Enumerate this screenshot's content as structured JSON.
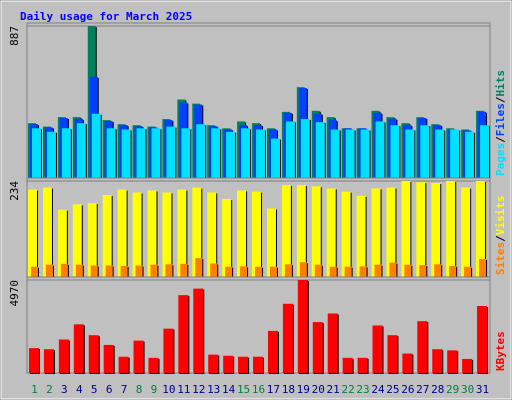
{
  "chart_data": {
    "type": "bar",
    "title": "Daily usage for March 2025",
    "legend_separator": "/",
    "categories": [
      "1",
      "2",
      "3",
      "4",
      "5",
      "6",
      "7",
      "8",
      "9",
      "10",
      "11",
      "12",
      "13",
      "14",
      "15",
      "16",
      "17",
      "18",
      "19",
      "20",
      "21",
      "22",
      "23",
      "24",
      "25",
      "26",
      "27",
      "28",
      "29",
      "30",
      "31"
    ],
    "category_colors": [
      "#008040",
      "#008040",
      "#00008b",
      "#00008b",
      "#00008b",
      "#00008b",
      "#00008b",
      "#008040",
      "#008040",
      "#00008b",
      "#00008b",
      "#00008b",
      "#00008b",
      "#00008b",
      "#008040",
      "#008040",
      "#00008b",
      "#00008b",
      "#00008b",
      "#00008b",
      "#00008b",
      "#008040",
      "#008040",
      "#00008b",
      "#00008b",
      "#00008b",
      "#00008b",
      "#00008b",
      "#008040",
      "#008040",
      "#00008b"
    ],
    "panels": [
      {
        "ylim": [
          0,
          887
        ],
        "yticks": [
          887
        ],
        "series": [
          {
            "name": "Hits",
            "color": "#00805c",
            "values": [
              320,
              300,
              355,
              355,
              887,
              338,
              314,
              308,
              300,
              344,
              458,
              434,
              308,
              290,
              330,
              320,
              290,
              386,
              530,
              392,
              355,
              290,
              290,
              392,
              355,
              320,
              355,
              314,
              290,
              283,
              392
            ]
          },
          {
            "name": "Files",
            "color": "#0040ff",
            "values": [
              314,
              295,
              350,
              345,
              590,
              332,
              308,
              302,
              295,
              338,
              440,
              428,
              302,
              283,
              308,
              308,
              283,
              380,
              525,
              375,
              338,
              290,
              290,
              380,
              345,
              308,
              350,
              308,
              283,
              277,
              386
            ]
          },
          {
            "name": "Pages",
            "color": "#00e0ff",
            "values": [
              290,
              270,
              290,
              320,
              375,
              290,
              283,
              290,
              290,
              300,
              290,
              314,
              290,
              270,
              290,
              283,
              230,
              330,
              344,
              326,
              283,
              283,
              283,
              330,
              308,
              283,
              308,
              283,
              283,
              270,
              308
            ]
          }
        ]
      },
      {
        "ylim": [
          0,
          234
        ],
        "yticks": [
          234
        ],
        "series": [
          {
            "name": "Visits",
            "color": "#ffff00",
            "values": [
              213,
              218,
              164,
              177,
              180,
              200,
              213,
              206,
              211,
              206,
              213,
              218,
              206,
              190,
              211,
              208,
              167,
              224,
              224,
              221,
              216,
              208,
              198,
              216,
              218,
              234,
              231,
              229,
              234,
              218,
              234
            ]
          },
          {
            "name": "Sites",
            "color": "#ff8000",
            "values": [
              25,
              30,
              32,
              30,
              28,
              28,
              27,
              28,
              30,
              31,
              32,
              46,
              33,
              25,
              26,
              25,
              25,
              31,
              36,
              30,
              25,
              25,
              26,
              30,
              35,
              30,
              29,
              31,
              27,
              25,
              44
            ]
          }
        ]
      },
      {
        "ylim": [
          0,
          4970
        ],
        "yticks": [
          4970
        ],
        "series": [
          {
            "name": "KBytes",
            "color": "#ff0000",
            "values": [
              1330,
              1270,
              1790,
              2600,
              2020,
              1500,
              870,
              1730,
              810,
              2370,
              4160,
              4510,
              980,
              920,
              870,
              870,
              2250,
              3700,
              4970,
              2720,
              3180,
              810,
              810,
              2540,
              2020,
              1040,
              2770,
              1270,
              1210,
              750,
              3580
            ]
          }
        ]
      }
    ]
  }
}
